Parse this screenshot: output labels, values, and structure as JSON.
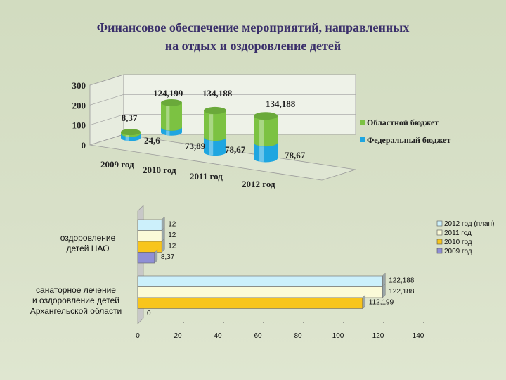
{
  "title": {
    "line1": "Финансовое обеспечение мероприятий, направленных",
    "line2": "на отдых и оздоровление детей"
  },
  "chart_data": [
    {
      "type": "bar",
      "style": "3d-cylinder-stacked",
      "categories": [
        "2009 год",
        "2010 год",
        "2011 год",
        "2012 год"
      ],
      "series": [
        {
          "name": "Областной бюджет",
          "values": [
            8.37,
            124.199,
            134.188,
            134.188
          ],
          "labels": [
            "8,37",
            "124,199",
            "134,188",
            "134,188"
          ],
          "color": "#7cc242"
        },
        {
          "name": "Федеральный бюджет",
          "values": [
            0,
            24.6,
            73.89,
            78.67
          ],
          "labels": [
            "",
            "24,6",
            "73,89",
            "78,67"
          ],
          "color": "#1fa6e0"
        }
      ],
      "extra_label": "78,67",
      "ylim": [
        0,
        300
      ],
      "yticks": [
        "0",
        "100",
        "200",
        "300"
      ],
      "grid": true,
      "legend_position": "right"
    },
    {
      "type": "bar",
      "orientation": "horizontal",
      "categories": [
        [
          "оздоровление",
          "детей НАО"
        ],
        [
          "санаторное лечение",
          "и оздоровление детей",
          "Архангельской области"
        ]
      ],
      "series": [
        {
          "name": "2012 год (план)",
          "values": [
            12,
            122.188
          ],
          "labels": [
            "12",
            "122,188"
          ],
          "color": "#ccf0fb"
        },
        {
          "name": "2011 год",
          "values": [
            12,
            122.188
          ],
          "labels": [
            "12",
            "122,188"
          ],
          "color": "#fbfad8"
        },
        {
          "name": "2010 год",
          "values": [
            12,
            112.199
          ],
          "labels": [
            "12",
            "112,199"
          ],
          "color": "#f8c51c"
        },
        {
          "name": "2009 год",
          "values": [
            8.37,
            0
          ],
          "labels": [
            "8,37",
            "0"
          ],
          "color": "#8f8fd6"
        }
      ],
      "xlim": [
        0,
        140
      ],
      "xticks": [
        "0",
        "20",
        "40",
        "60",
        "80",
        "100",
        "120",
        "140"
      ],
      "legend_position": "top-right"
    }
  ]
}
